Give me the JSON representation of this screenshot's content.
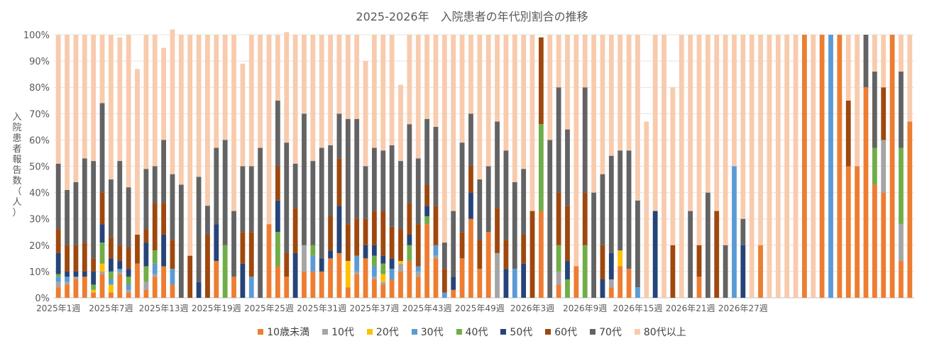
{
  "chart_data": {
    "type": "bar",
    "stacked": true,
    "title": "2025-2026年　入院患者の年代別割合の推移",
    "ylabel": "入院患者報告数（人）",
    "xlabel": "",
    "ylim": [
      0,
      100
    ],
    "yticks": [
      "0%",
      "10%",
      "20%",
      "30%",
      "40%",
      "50%",
      "60%",
      "70%",
      "80%",
      "90%",
      "100%"
    ],
    "xtick_labels": [
      "2025年1週",
      "2025年7週",
      "2025年13週",
      "2025年19週",
      "2025年25週",
      "2025年31週",
      "2025年37週",
      "2025年43週",
      "2025年49週",
      "2026年3週",
      "2026年9週",
      "2026年15週",
      "2026年21週",
      "2026年27週"
    ],
    "legend_position": "bottom",
    "grid": true,
    "series": [
      {
        "name": "10歳未満",
        "color": "#ED7D31",
        "values": [
          4,
          5,
          7,
          8,
          2,
          9,
          2,
          9,
          2,
          13,
          3,
          8,
          12,
          5,
          0,
          0,
          0,
          0,
          14,
          0,
          8,
          0,
          0,
          0,
          28,
          12,
          8,
          0,
          10,
          10,
          10,
          15,
          17,
          4,
          9,
          15,
          7,
          5,
          7,
          10,
          14,
          8,
          28,
          15,
          0,
          3,
          15,
          30,
          11,
          25,
          0,
          0,
          0,
          0,
          0,
          33,
          0,
          5,
          0,
          12,
          0,
          0,
          0,
          4,
          12,
          11,
          0,
          0,
          0,
          0,
          0,
          0,
          0,
          8,
          0,
          0,
          0,
          0,
          0,
          0,
          20,
          0,
          0,
          0,
          0,
          100,
          0,
          100,
          0,
          100,
          50,
          50,
          80,
          43,
          40,
          100,
          14,
          67
        ]
      },
      {
        "name": "10代",
        "color": "#A5A5A5",
        "values": [
          2,
          1,
          1,
          0,
          0,
          1,
          0,
          1,
          1,
          0,
          3,
          1,
          0,
          0,
          0,
          0,
          0,
          0,
          0,
          0,
          0,
          0,
          0,
          0,
          0,
          0,
          0,
          0,
          10,
          0,
          0,
          0,
          0,
          0,
          1,
          0,
          1,
          1,
          0,
          3,
          0,
          2,
          0,
          1,
          0,
          0,
          0,
          0,
          0,
          0,
          17,
          0,
          0,
          0,
          0,
          0,
          0,
          5,
          0,
          0,
          0,
          0,
          0,
          3,
          0,
          0,
          0,
          0,
          0,
          0,
          0,
          0,
          0,
          0,
          0,
          0,
          0,
          0,
          0,
          0,
          0,
          0,
          0,
          0,
          0,
          0,
          0,
          0,
          0,
          0,
          0,
          0,
          0,
          0,
          20,
          0,
          14,
          0
        ]
      },
      {
        "name": "20代",
        "color": "#FFC000",
        "values": [
          0,
          0,
          0,
          0,
          1,
          3,
          3,
          0,
          0,
          0,
          0,
          0,
          0,
          0,
          0,
          0,
          0,
          0,
          0,
          0,
          0,
          0,
          0,
          0,
          0,
          0,
          0,
          0,
          0,
          0,
          0,
          0,
          0,
          10,
          0,
          0,
          0,
          3,
          0,
          1,
          0,
          0,
          0,
          0,
          0,
          0,
          0,
          0,
          0,
          0,
          0,
          0,
          0,
          0,
          0,
          0,
          0,
          0,
          0,
          0,
          0,
          0,
          0,
          0,
          6,
          0,
          0,
          0,
          0,
          0,
          0,
          0,
          0,
          0,
          0,
          0,
          0,
          0,
          0,
          0,
          0,
          0,
          0,
          0,
          0,
          0,
          0,
          0,
          0,
          0,
          0,
          0,
          0,
          0,
          0,
          0,
          0,
          0
        ]
      },
      {
        "name": "30代",
        "color": "#5B9BD5",
        "values": [
          2,
          2,
          0,
          0,
          0,
          0,
          2,
          1,
          2,
          0,
          0,
          4,
          0,
          6,
          0,
          0,
          0,
          0,
          0,
          0,
          0,
          0,
          8,
          0,
          0,
          0,
          0,
          0,
          0,
          6,
          0,
          0,
          0,
          0,
          6,
          0,
          4,
          0,
          4,
          0,
          0,
          2,
          0,
          4,
          2,
          0,
          0,
          0,
          0,
          0,
          0,
          0,
          11,
          0,
          0,
          0,
          0,
          0,
          0,
          0,
          0,
          0,
          0,
          0,
          0,
          0,
          4,
          0,
          0,
          0,
          0,
          0,
          0,
          0,
          0,
          0,
          0,
          50,
          0,
          0,
          0,
          0,
          0,
          0,
          0,
          0,
          0,
          0,
          100,
          0,
          0,
          0,
          0,
          0,
          0,
          0,
          0,
          0
        ]
      },
      {
        "name": "40代",
        "color": "#70AD47",
        "values": [
          1,
          0,
          0,
          0,
          2,
          8,
          3,
          0,
          3,
          0,
          6,
          5,
          0,
          0,
          0,
          0,
          0,
          0,
          0,
          20,
          0,
          0,
          0,
          0,
          0,
          13,
          0,
          0,
          0,
          4,
          0,
          0,
          0,
          0,
          0,
          0,
          4,
          4,
          0,
          0,
          6,
          0,
          3,
          0,
          0,
          0,
          0,
          0,
          0,
          0,
          0,
          0,
          0,
          0,
          0,
          33,
          0,
          10,
          7,
          0,
          20,
          0,
          0,
          0,
          0,
          0,
          0,
          0,
          0,
          0,
          0,
          0,
          0,
          0,
          0,
          0,
          0,
          0,
          0,
          0,
          0,
          0,
          0,
          0,
          0,
          0,
          0,
          0,
          0,
          0,
          0,
          0,
          0,
          14,
          0,
          0,
          29,
          0
        ]
      },
      {
        "name": "50代",
        "color": "#264478",
        "values": [
          8,
          2,
          2,
          2,
          5,
          7,
          5,
          3,
          3,
          0,
          9,
          0,
          12,
          0,
          0,
          0,
          6,
          0,
          14,
          0,
          0,
          13,
          0,
          0,
          0,
          12,
          0,
          17,
          0,
          0,
          5,
          3,
          18,
          0,
          0,
          5,
          4,
          3,
          4,
          0,
          4,
          0,
          4,
          0,
          0,
          5,
          0,
          10,
          0,
          0,
          0,
          11,
          0,
          13,
          0,
          0,
          0,
          0,
          7,
          0,
          0,
          0,
          7,
          10,
          0,
          0,
          0,
          0,
          33,
          0,
          0,
          0,
          0,
          0,
          0,
          0,
          0,
          0,
          20,
          0,
          0,
          0,
          0,
          0,
          0,
          0,
          0,
          0,
          0,
          0,
          0,
          0,
          0,
          0,
          0,
          0,
          0,
          0
        ]
      },
      {
        "name": "60代",
        "color": "#9E480E",
        "values": [
          9,
          10,
          10,
          11,
          5,
          12,
          8,
          6,
          8,
          11,
          5,
          18,
          12,
          11,
          0,
          16,
          0,
          24,
          0,
          0,
          0,
          12,
          17,
          0,
          0,
          13,
          9,
          17,
          0,
          0,
          0,
          13,
          18,
          14,
          14,
          10,
          13,
          17,
          12,
          12,
          12,
          16,
          8,
          15,
          9,
          0,
          10,
          10,
          11,
          0,
          17,
          11,
          0,
          11,
          33,
          33,
          0,
          20,
          21,
          0,
          20,
          0,
          13,
          0,
          0,
          0,
          0,
          0,
          0,
          0,
          20,
          0,
          0,
          12,
          0,
          33,
          0,
          0,
          0,
          0,
          0,
          0,
          0,
          0,
          0,
          0,
          0,
          0,
          0,
          0,
          25,
          0,
          0,
          0,
          20,
          0,
          0,
          0
        ]
      },
      {
        "name": "70代",
        "color": "#636363",
        "values": [
          25,
          21,
          24,
          32,
          37,
          34,
          22,
          32,
          23,
          0,
          23,
          14,
          24,
          25,
          43,
          0,
          40,
          11,
          29,
          40,
          25,
          25,
          25,
          57,
          0,
          25,
          42,
          17,
          50,
          32,
          42,
          27,
          17,
          40,
          38,
          20,
          24,
          23,
          31,
          26,
          30,
          25,
          25,
          30,
          10,
          25,
          34,
          20,
          23,
          25,
          33,
          34,
          33,
          25,
          0,
          0,
          60,
          40,
          29,
          0,
          40,
          40,
          27,
          37,
          38,
          45,
          33,
          0,
          0,
          0,
          0,
          0,
          33,
          0,
          40,
          0,
          20,
          0,
          10,
          0,
          0,
          0,
          0,
          0,
          0,
          0,
          0,
          0,
          0,
          0,
          0,
          0,
          20,
          29,
          0,
          0,
          29,
          0
        ]
      },
      {
        "name": "80代以上",
        "color": "#F8CBAD",
        "values": [
          49,
          59,
          56,
          47,
          48,
          26,
          55,
          47,
          58,
          63,
          51,
          50,
          35,
          55,
          57,
          84,
          54,
          65,
          43,
          40,
          67,
          39,
          50,
          43,
          72,
          25,
          42,
          49,
          30,
          48,
          43,
          42,
          30,
          32,
          32,
          40,
          43,
          44,
          42,
          29,
          34,
          47,
          32,
          35,
          79,
          67,
          41,
          30,
          55,
          50,
          33,
          44,
          56,
          51,
          67,
          0,
          40,
          20,
          36,
          88,
          20,
          60,
          53,
          46,
          44,
          44,
          63,
          67,
          67,
          100,
          60,
          100,
          67,
          80,
          60,
          67,
          80,
          50,
          70,
          100,
          80,
          100,
          100,
          100,
          100,
          0,
          100,
          0,
          0,
          0,
          25,
          50,
          0,
          14,
          20,
          0,
          14,
          33
        ]
      }
    ]
  }
}
